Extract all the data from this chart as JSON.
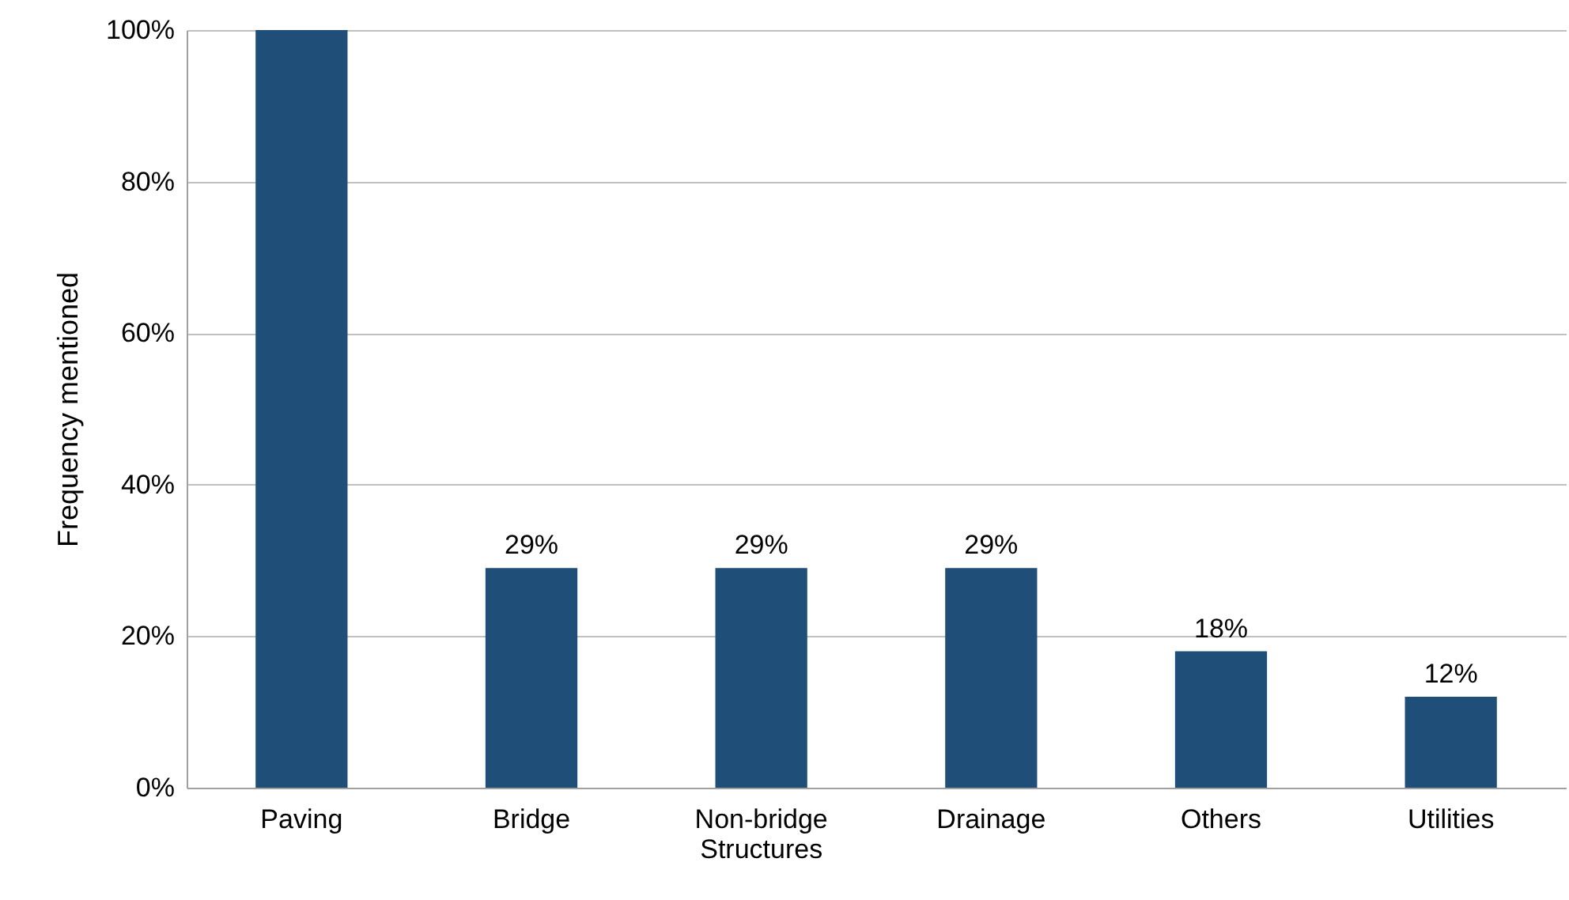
{
  "chart_data": {
    "type": "bar",
    "ylabel": "Frequency  mentioned",
    "categories": [
      "Paving",
      "Bridge",
      "Non-bridge Structures",
      "Drainage",
      "Others",
      "Utilities"
    ],
    "values": [
      100,
      29,
      29,
      29,
      18,
      12
    ],
    "value_labels": [
      null,
      "29%",
      "29%",
      "29%",
      "18%",
      "12%"
    ],
    "color": "#1f4e79",
    "ylim": [
      0,
      100
    ],
    "yticks": [
      {
        "value": 0,
        "label": "0%"
      },
      {
        "value": 20,
        "label": "20%"
      },
      {
        "value": 40,
        "label": "40%"
      },
      {
        "value": 60,
        "label": "60%"
      },
      {
        "value": 80,
        "label": "80%"
      },
      {
        "value": 100,
        "label": "100%"
      }
    ],
    "grid": "y"
  }
}
